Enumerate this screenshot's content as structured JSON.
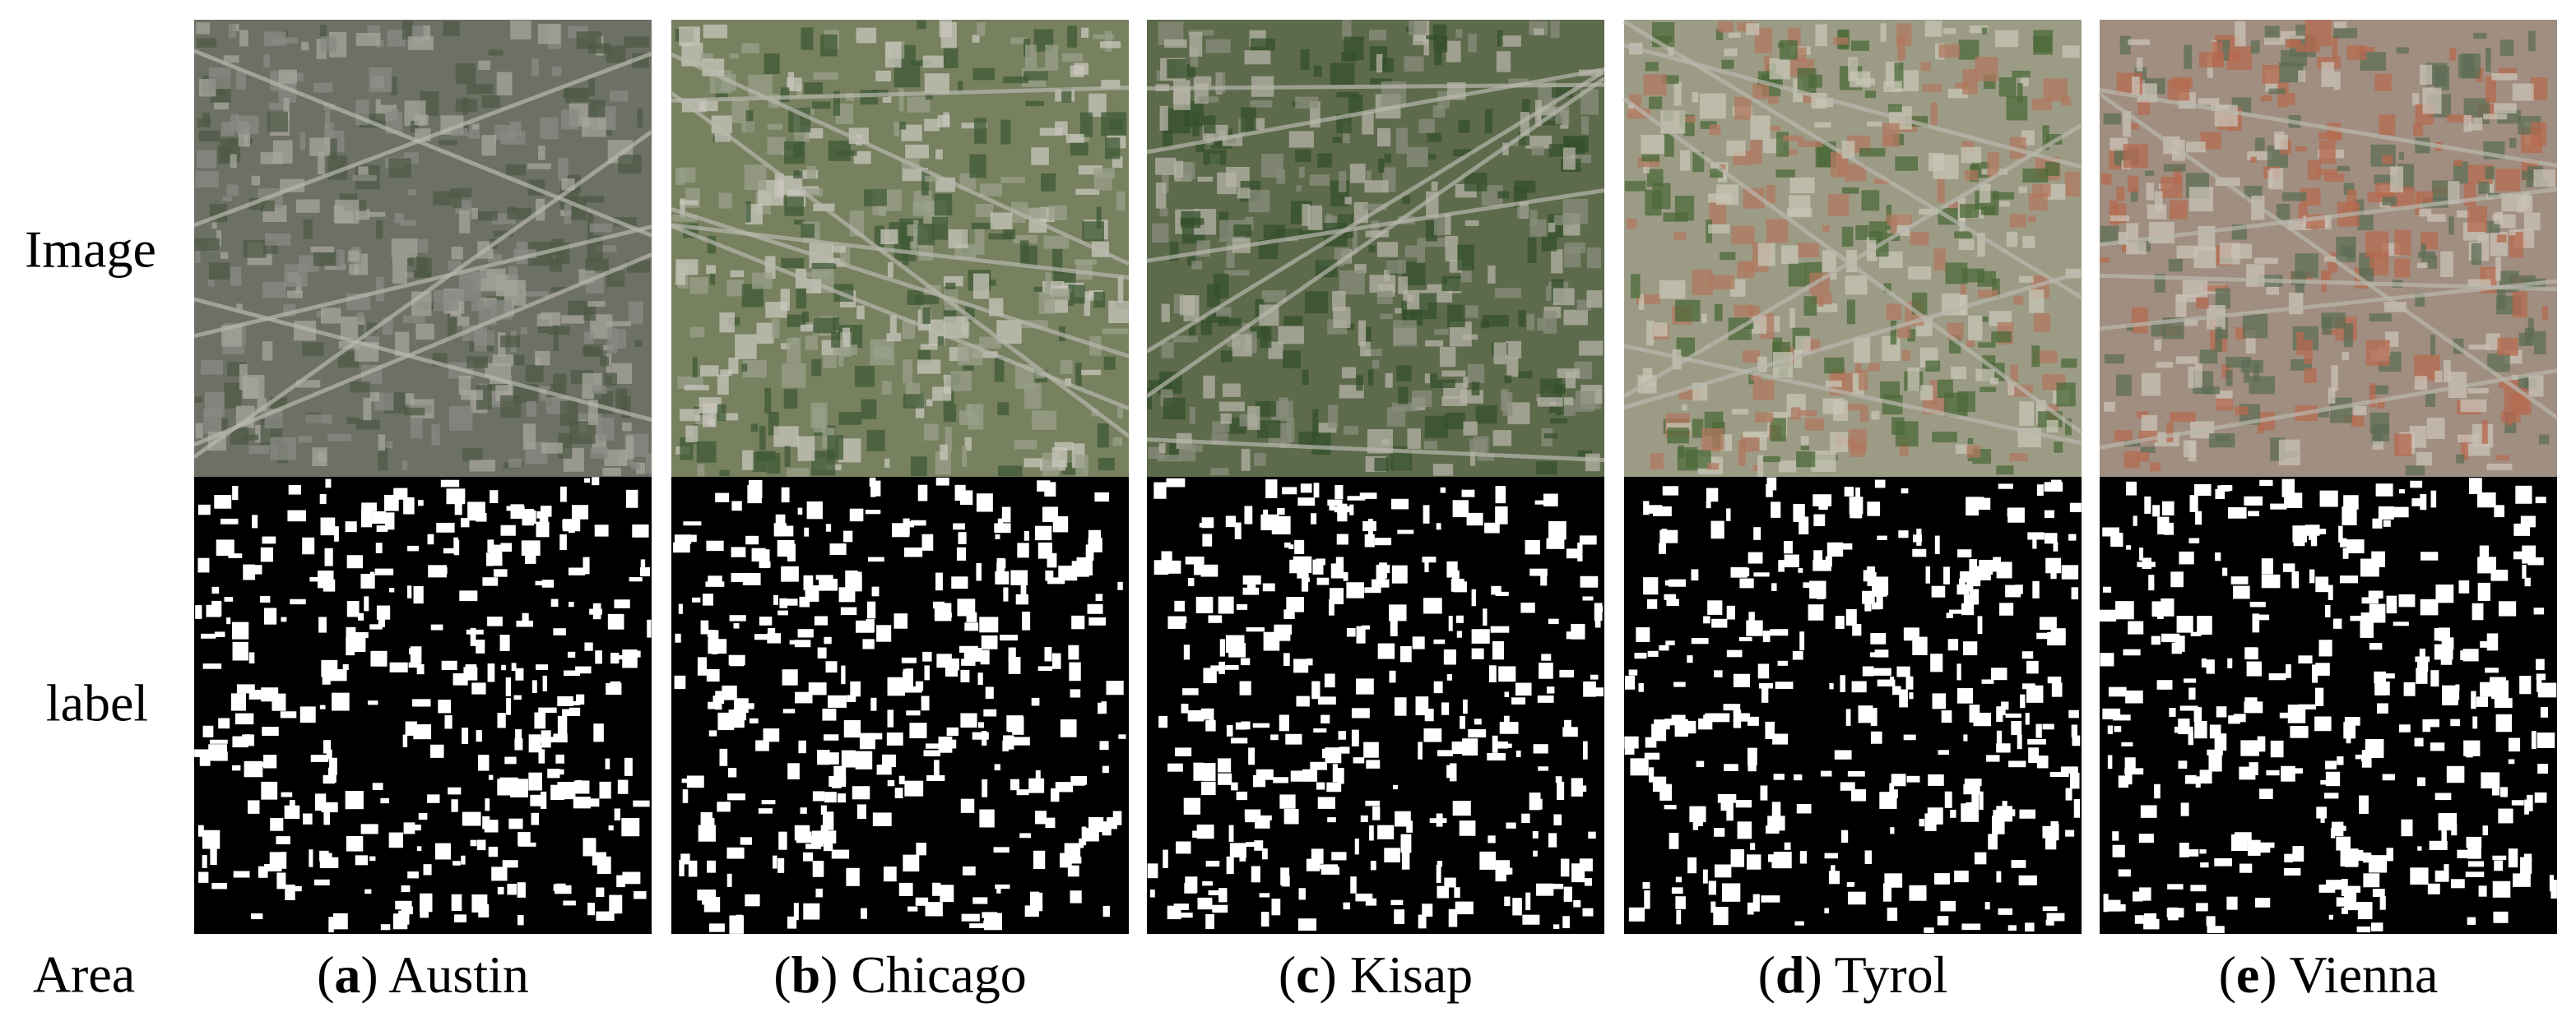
{
  "row_labels": [
    "Image",
    "label",
    "Area"
  ],
  "columns": [
    {
      "caption": [
        "(",
        "a",
        ") Austin"
      ]
    },
    {
      "caption": [
        "(",
        "b",
        ") Chicago"
      ]
    },
    {
      "caption": [
        "(",
        "c",
        ") Kisap"
      ]
    },
    {
      "caption": [
        "(",
        "d",
        ") Tyrol"
      ]
    },
    {
      "caption": [
        "(",
        "e",
        ") Vienna"
      ]
    }
  ]
}
